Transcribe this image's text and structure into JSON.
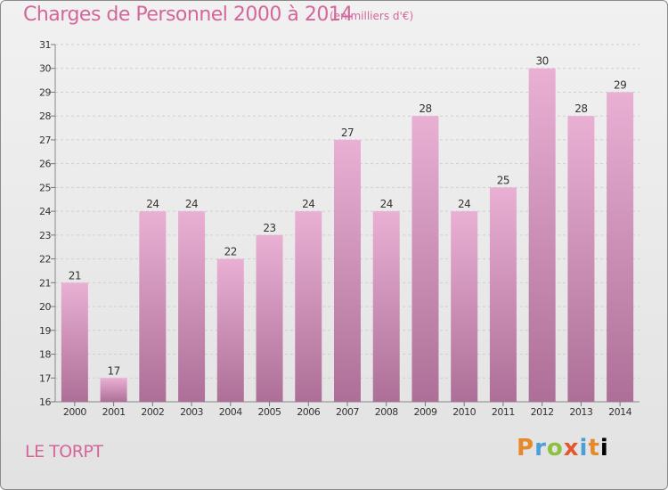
{
  "header": {
    "title": "Charges de Personnel 2000 à 2014",
    "subtitle": "(en milliers d'€)"
  },
  "footer": {
    "commune": "LE TORPT",
    "logo_text": "Proxiti"
  },
  "colors": {
    "title": "#d4669a",
    "bar_top": "#eab0d4",
    "bar_bottom": "#ad6f97",
    "background_top": "#f1f1f1",
    "background_bottom": "#e2e2e2"
  },
  "chart_data": {
    "type": "bar",
    "categories": [
      "2000",
      "2001",
      "2002",
      "2003",
      "2004",
      "2005",
      "2006",
      "2007",
      "2008",
      "2009",
      "2010",
      "2011",
      "2012",
      "2013",
      "2014"
    ],
    "values": [
      21,
      17,
      24,
      24,
      22,
      23,
      24,
      27,
      24,
      28,
      24,
      25,
      30,
      28,
      29
    ],
    "ylim": [
      16,
      31
    ],
    "yticks": [
      16,
      17,
      18,
      19,
      20,
      21,
      22,
      23,
      24,
      25,
      26,
      27,
      28,
      29,
      30,
      31
    ],
    "grid": true,
    "data_labels": true
  }
}
